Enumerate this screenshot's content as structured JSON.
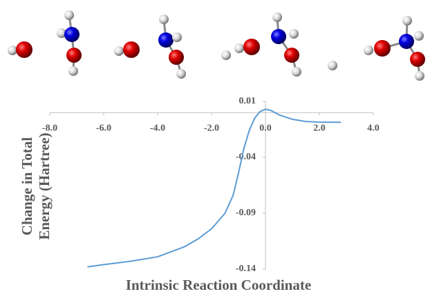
{
  "chart_data": {
    "type": "line",
    "xlabel": "Intrinsic Reaction Coordinate",
    "ylabel": "Change in Total Energy (Hartree)",
    "x": [
      -6.6,
      -6,
      -5,
      -4,
      -3,
      -2.5,
      -2,
      -1.5,
      -1.2,
      -1,
      -0.8,
      -0.6,
      -0.4,
      -0.2,
      0,
      0.2,
      0.5,
      1,
      1.5,
      2,
      2.8
    ],
    "values": [
      -0.138,
      -0.136,
      -0.133,
      -0.129,
      -0.12,
      -0.113,
      -0.104,
      -0.09,
      -0.074,
      -0.054,
      -0.032,
      -0.016,
      -0.005,
      0.001,
      0.003,
      0.002,
      -0.002,
      -0.006,
      -0.008,
      -0.0085,
      -0.0087
    ],
    "color": "#5b9bd5",
    "xlim": [
      -8,
      4
    ],
    "xticks": [
      {
        "value": -8,
        "label": "-8.0"
      },
      {
        "value": -6,
        "label": "-6.0"
      },
      {
        "value": -4,
        "label": "-4.0"
      },
      {
        "value": -2,
        "label": "-2.0"
      },
      {
        "value": 0,
        "label": "0.0"
      },
      {
        "value": 2,
        "label": "2.0"
      },
      {
        "value": 4,
        "label": "4.0"
      }
    ],
    "ylim": [
      -0.14,
      0.01
    ],
    "yticks": [
      0.01,
      -0.04,
      -0.09,
      -0.14
    ]
  }
}
